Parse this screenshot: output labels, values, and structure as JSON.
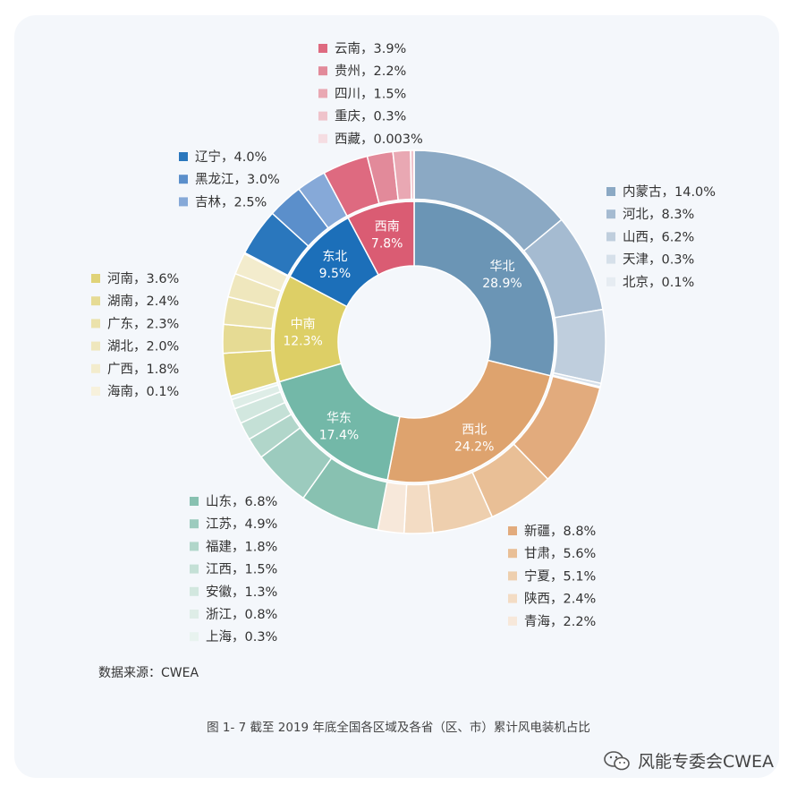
{
  "chart_data": {
    "type": "pie",
    "subtype": "nested-donut",
    "title": "图 1- 7 截至 2019 年底全国各区域及各省（区、市）累计风电装机占比",
    "source": "数据来源：CWEA",
    "regions": [
      {
        "name": "华北",
        "value": "28.9%",
        "color": "#6b95b5",
        "provinces": [
          {
            "name": "内蒙古",
            "value": "14.0%",
            "label": "内蒙古，14.0%",
            "color": "#8ba9c4"
          },
          {
            "name": "河北",
            "value": "8.3%",
            "label": "河北，8.3%",
            "color": "#a5bbd1"
          },
          {
            "name": "山西",
            "value": "6.2%",
            "label": "山西，6.2%",
            "color": "#bfcedd"
          },
          {
            "name": "天津",
            "value": "0.3%",
            "label": "天津，0.3%",
            "color": "#d6e0ea"
          },
          {
            "name": "北京",
            "value": "0.1%",
            "label": "北京，0.1%",
            "color": "#e6ecf2"
          }
        ]
      },
      {
        "name": "西北",
        "value": "24.2%",
        "color": "#dea36e",
        "provinces": [
          {
            "name": "新疆",
            "value": "8.8%",
            "label": "新疆，8.8%",
            "color": "#e2ab7d"
          },
          {
            "name": "甘肃",
            "value": "5.6%",
            "label": "甘肃，5.6%",
            "color": "#e9bf96"
          },
          {
            "name": "宁夏",
            "value": "5.1%",
            "label": "宁夏，5.1%",
            "color": "#eecfae"
          },
          {
            "name": "陕西",
            "value": "2.4%",
            "label": "陕西，2.4%",
            "color": "#f3dcc4"
          },
          {
            "name": "青海",
            "value": "2.2%",
            "label": "青海，2.2%",
            "color": "#f7e8da"
          }
        ]
      },
      {
        "name": "华东",
        "value": "17.4%",
        "color": "#73b8a8",
        "provinces": [
          {
            "name": "山东",
            "value": "6.8%",
            "label": "山东，6.8%",
            "color": "#88c1b1"
          },
          {
            "name": "江苏",
            "value": "4.9%",
            "label": "江苏，4.9%",
            "color": "#9ccbbe"
          },
          {
            "name": "福建",
            "value": "1.8%",
            "label": "福建，1.8%",
            "color": "#b1d6ca"
          },
          {
            "name": "江西",
            "value": "1.5%",
            "label": "江西，1.5%",
            "color": "#c4e0d6"
          },
          {
            "name": "安徽",
            "value": "1.3%",
            "label": "安徽，1.3%",
            "color": "#d2e7df"
          },
          {
            "name": "浙江",
            "value": "0.8%",
            "label": "浙江，0.8%",
            "color": "#deede7"
          },
          {
            "name": "上海",
            "value": "0.3%",
            "label": "上海，0.3%",
            "color": "#e8f3ef"
          }
        ]
      },
      {
        "name": "中南",
        "value": "12.3%",
        "color": "#ddcf66",
        "provinces": [
          {
            "name": "河南",
            "value": "3.6%",
            "label": "河南，3.6%",
            "color": "#e0d378"
          },
          {
            "name": "湖南",
            "value": "2.4%",
            "label": "湖南，2.4%",
            "color": "#e6db94"
          },
          {
            "name": "广东",
            "value": "2.3%",
            "label": "广东，2.3%",
            "color": "#ebe2ab"
          },
          {
            "name": "湖北",
            "value": "2.0%",
            "label": "湖北，2.0%",
            "color": "#efe7bd"
          },
          {
            "name": "广西",
            "value": "1.8%",
            "label": "广西，1.8%",
            "color": "#f3eccd"
          },
          {
            "name": "海南",
            "value": "0.1%",
            "label": "海南，0.1%",
            "color": "#f7f1dc"
          }
        ]
      },
      {
        "name": "东北",
        "value": "9.5%",
        "color": "#1c6fb9",
        "provinces": [
          {
            "name": "辽宁",
            "value": "4.0%",
            "label": "辽宁，4.0%",
            "color": "#2a77bd"
          },
          {
            "name": "黑龙江",
            "value": "3.0%",
            "label": "黑龙江，3.0%",
            "color": "#5b8fcb"
          },
          {
            "name": "吉林",
            "value": "2.5%",
            "label": "吉林，2.5%",
            "color": "#86a9d8"
          }
        ]
      },
      {
        "name": "西南",
        "value": "7.8%",
        "color": "#da5c73",
        "provinces": [
          {
            "name": "云南",
            "value": "3.9%",
            "label": "云南，3.9%",
            "color": "#de6a80"
          },
          {
            "name": "贵州",
            "value": "2.2%",
            "label": "贵州，2.2%",
            "color": "#e28a9a"
          },
          {
            "name": "四川",
            "value": "1.5%",
            "label": "四川，1.5%",
            "color": "#e9a8b3"
          },
          {
            "name": "重庆",
            "value": "0.3%",
            "label": "重庆，0.3%",
            "color": "#efc3cb"
          },
          {
            "name": "西藏",
            "value": "0.003%",
            "label": "西藏，0.003%",
            "color": "#f5dde2"
          }
        ]
      }
    ]
  },
  "watermark": {
    "text": "风能专委会CWEA",
    "icon": "wechat-icon"
  }
}
